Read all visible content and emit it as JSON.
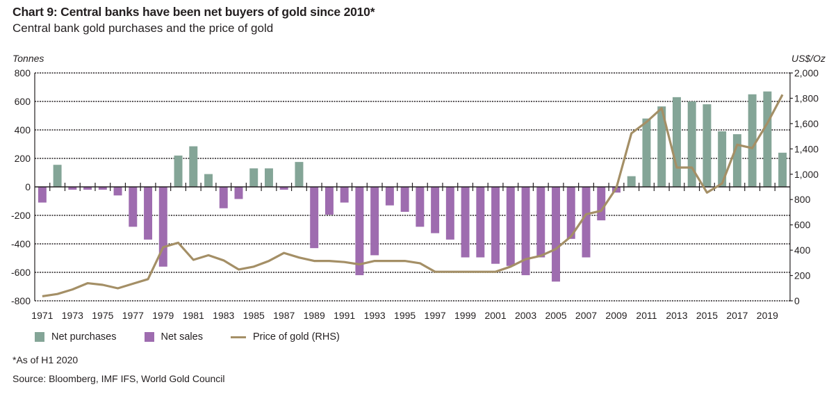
{
  "header": {
    "title": "Chart 9: Central banks have been net buyers of gold since 2010*",
    "subtitle": "Central bank gold purchases and the price of gold"
  },
  "footer": {
    "footnote": "*As of H1 2020",
    "source": "Source: Bloomberg, IMF IFS, World Gold Council"
  },
  "colors": {
    "net_purchases": "#84a597",
    "net_sales": "#9e6caf",
    "price_line": "#a48f66",
    "axis": "#231f20"
  },
  "chart_data": {
    "type": "bar",
    "title": "Chart 9: Central banks have been net buyers of gold since 2010*",
    "subtitle": "Central bank gold purchases and the price of gold",
    "xlabel": "",
    "ylabel": "Tonnes",
    "y2label": "US$/Oz",
    "ylim": [
      -800,
      800
    ],
    "y2lim": [
      0,
      2000
    ],
    "yticks": [
      "800",
      "600",
      "400",
      "200",
      "0",
      "-200",
      "-400",
      "-600",
      "-800"
    ],
    "y2ticks": [
      "2,000",
      "1,800",
      "1,600",
      "1,400",
      "1,000",
      "800",
      "600",
      "400",
      "200",
      "0"
    ],
    "xtick_labels": [
      "1971",
      "1973",
      "1975",
      "1977",
      "1979",
      "1981",
      "1983",
      "1985",
      "1987",
      "1989",
      "1991",
      "1993",
      "1995",
      "1997",
      "1999",
      "2001",
      "2003",
      "2005",
      "2007",
      "2009",
      "2011",
      "2013",
      "2015",
      "2017",
      "2019"
    ],
    "grid": true,
    "legend_position": "bottom-left",
    "categories": [
      "1971",
      "1972",
      "1973",
      "1974",
      "1975",
      "1976",
      "1977",
      "1978",
      "1979",
      "1980",
      "1981",
      "1982",
      "1983",
      "1984",
      "1985",
      "1986",
      "1987",
      "1988",
      "1989",
      "1990",
      "1991",
      "1992",
      "1993",
      "1994",
      "1995",
      "1996",
      "1997",
      "1998",
      "1999",
      "2000",
      "2001",
      "2002",
      "2003",
      "2004",
      "2005",
      "2006",
      "2007",
      "2008",
      "2009",
      "2010",
      "2011",
      "2012",
      "2013",
      "2014",
      "2015",
      "2016",
      "2017",
      "2018",
      "2019",
      "2020"
    ],
    "series": [
      {
        "name": "Net purchases / Net sales",
        "type": "bar",
        "axis": "left",
        "legend": [
          "Net purchases",
          "Net sales"
        ],
        "values": [
          -110,
          155,
          -20,
          -20,
          -20,
          -60,
          -280,
          -370,
          -560,
          220,
          285,
          90,
          -150,
          -85,
          130,
          130,
          -20,
          175,
          -430,
          -195,
          -110,
          -620,
          -480,
          -130,
          -175,
          -280,
          -325,
          -370,
          -495,
          -495,
          -540,
          -555,
          -620,
          -495,
          -665,
          -365,
          -495,
          -235,
          -40,
          75,
          480,
          565,
          630,
          600,
          580,
          390,
          370,
          650,
          670,
          240
        ]
      },
      {
        "name": "Price of gold (RHS)",
        "type": "line",
        "axis": "right",
        "values": [
          40,
          60,
          100,
          155,
          140,
          110,
          150,
          190,
          470,
          510,
          360,
          400,
          355,
          275,
          300,
          350,
          420,
          380,
          350,
          350,
          340,
          320,
          350,
          350,
          350,
          330,
          255,
          255,
          255,
          255,
          255,
          300,
          365,
          395,
          455,
          565,
          760,
          790,
          990,
          1470,
          1570,
          1690,
          1170,
          1170,
          950,
          1030,
          1370,
          1340,
          1560,
          1810
        ]
      }
    ]
  }
}
